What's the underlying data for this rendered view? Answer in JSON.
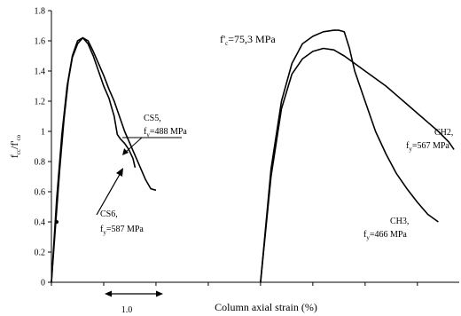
{
  "chart_data": {
    "type": "line",
    "xlabel": "Column axial strain (%)",
    "ylabel": {
      "base": "f",
      "sub1": "cc",
      "mid": "/f'",
      "sub2": "co"
    },
    "ylim": [
      0,
      1.8
    ],
    "yticks": [
      "0",
      "0.2",
      "0.4",
      "0.6",
      "0.8",
      "1",
      "1.2",
      "1.4",
      "1.6",
      "1.8"
    ],
    "x_unit": "strain (%)",
    "xlim": [
      0,
      3.9
    ],
    "grid": false,
    "scale_bar": {
      "label": "1.0",
      "x_start": 0.5,
      "x_end": 1.0
    },
    "series": [
      {
        "name": "CS5",
        "x": [
          0,
          0.04,
          0.08,
          0.12,
          0.16,
          0.2,
          0.25,
          0.3,
          0.35,
          0.4,
          0.45,
          0.5,
          0.55,
          0.6,
          0.65,
          0.7,
          0.75,
          0.8,
          0.85,
          0.9,
          0.95,
          1.0
        ],
        "y": [
          0,
          0.38,
          0.75,
          1.08,
          1.33,
          1.49,
          1.58,
          1.62,
          1.6,
          1.53,
          1.45,
          1.37,
          1.28,
          1.2,
          1.1,
          1.0,
          0.92,
          0.84,
          0.76,
          0.68,
          0.62,
          0.61
        ]
      },
      {
        "name": "CS6",
        "x": [
          0,
          0.05,
          0.1,
          0.15,
          0.2,
          0.25,
          0.3,
          0.35,
          0.4,
          0.45,
          0.5,
          0.55,
          0.6,
          0.63,
          0.66,
          0.7,
          0.74,
          0.78,
          0.8
        ],
        "y": [
          0,
          0.55,
          0.98,
          1.3,
          1.5,
          1.6,
          1.62,
          1.58,
          1.5,
          1.4,
          1.3,
          1.22,
          1.1,
          0.98,
          0.95,
          0.92,
          0.88,
          0.82,
          0.76
        ]
      },
      {
        "name": "CH2",
        "x": [
          2.0,
          2.1,
          2.2,
          2.3,
          2.4,
          2.5,
          2.6,
          2.7,
          2.8,
          2.9,
          3.0,
          3.1,
          3.2,
          3.3,
          3.4,
          3.5,
          3.6,
          3.7,
          3.8,
          3.85
        ],
        "y": [
          0,
          0.7,
          1.15,
          1.38,
          1.48,
          1.53,
          1.55,
          1.54,
          1.5,
          1.45,
          1.4,
          1.35,
          1.3,
          1.24,
          1.18,
          1.12,
          1.06,
          1.0,
          0.93,
          0.88
        ]
      },
      {
        "name": "CH3",
        "x": [
          2.0,
          2.1,
          2.2,
          2.3,
          2.4,
          2.5,
          2.6,
          2.7,
          2.75,
          2.8,
          2.85,
          2.9,
          3.0,
          3.1,
          3.2,
          3.3,
          3.4,
          3.5,
          3.6,
          3.7
        ],
        "y": [
          0,
          0.75,
          1.2,
          1.45,
          1.58,
          1.63,
          1.66,
          1.67,
          1.67,
          1.66,
          1.55,
          1.4,
          1.2,
          1.0,
          0.85,
          0.72,
          0.62,
          0.53,
          0.45,
          0.4
        ]
      }
    ],
    "annotations": [
      {
        "name": "CS5",
        "line1": "CS5,",
        "fy_prefix": "f",
        "fy_sub": "y",
        "fy_value": "=488 MPa"
      },
      {
        "name": "CS6",
        "line1": "CS6,",
        "fy_prefix": "f",
        "fy_sub": "y",
        "fy_value": "=587 MPa"
      },
      {
        "name": "CH2",
        "line1": "CH2,",
        "fy_prefix": "f",
        "fy_sub": "y",
        "fy_value": "=567 MPa"
      },
      {
        "name": "CH3",
        "line1": "CH3,",
        "fy_prefix": "f",
        "fy_sub": "y",
        "fy_value": "=466 MPa"
      }
    ],
    "fc_label": {
      "prefix": "f'",
      "sub": "c",
      "value": "=75,3 MPa"
    }
  }
}
